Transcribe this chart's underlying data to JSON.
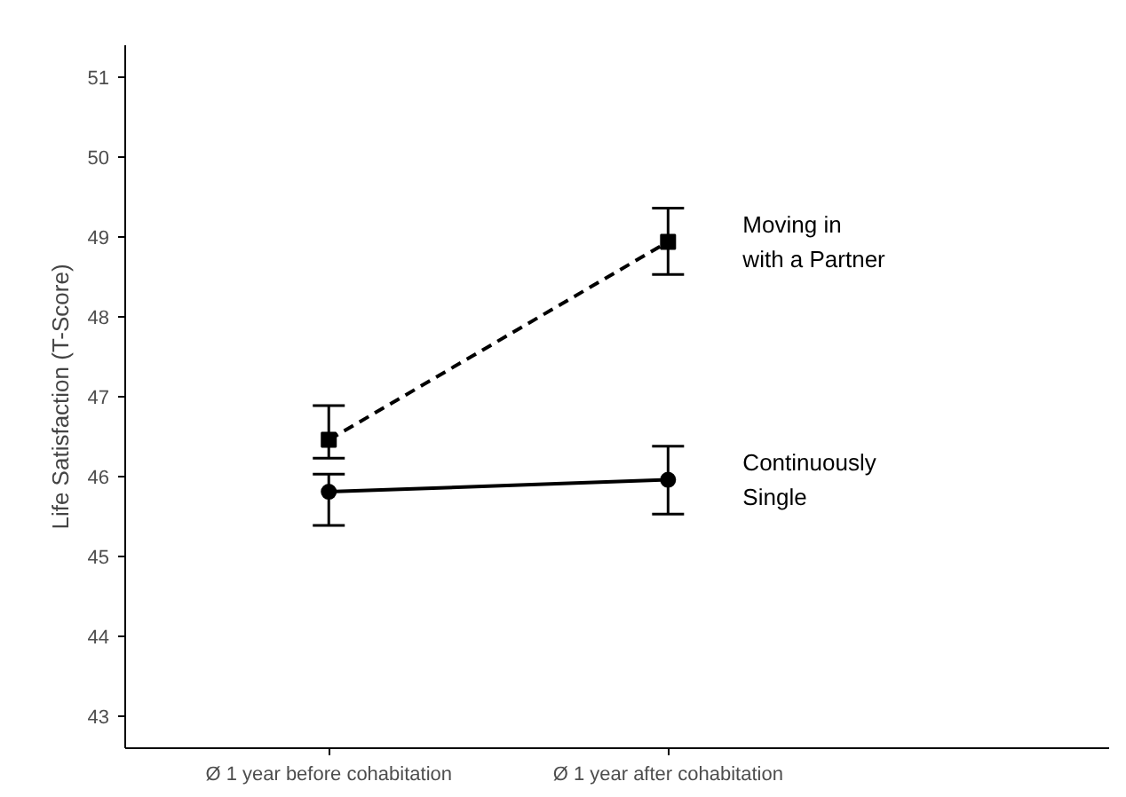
{
  "chart_data": {
    "type": "line",
    "ylabel": "Life Satisfaction (T-Score)",
    "categories": [
      "Ø 1 year before cohabitation",
      "Ø 1 year after cohabitation"
    ],
    "ylim": [
      42.6,
      51.4
    ],
    "yticks": [
      43,
      44,
      45,
      46,
      47,
      48,
      49,
      50,
      51
    ],
    "grid": false,
    "legend": false,
    "series": [
      {
        "name": "Moving in\nwith a Partner",
        "color": "#000000",
        "marker": "square",
        "line_style": "dashed",
        "values": [
          46.46,
          48.94
        ],
        "errors": [
          [
            46.23,
            46.89
          ],
          [
            48.53,
            49.36
          ]
        ]
      },
      {
        "name": "Continuously\nSingle",
        "color": "#000000",
        "marker": "circle",
        "line_style": "solid",
        "values": [
          45.81,
          45.96
        ],
        "errors": [
          [
            45.39,
            46.03
          ],
          [
            45.53,
            46.38
          ]
        ]
      }
    ]
  }
}
